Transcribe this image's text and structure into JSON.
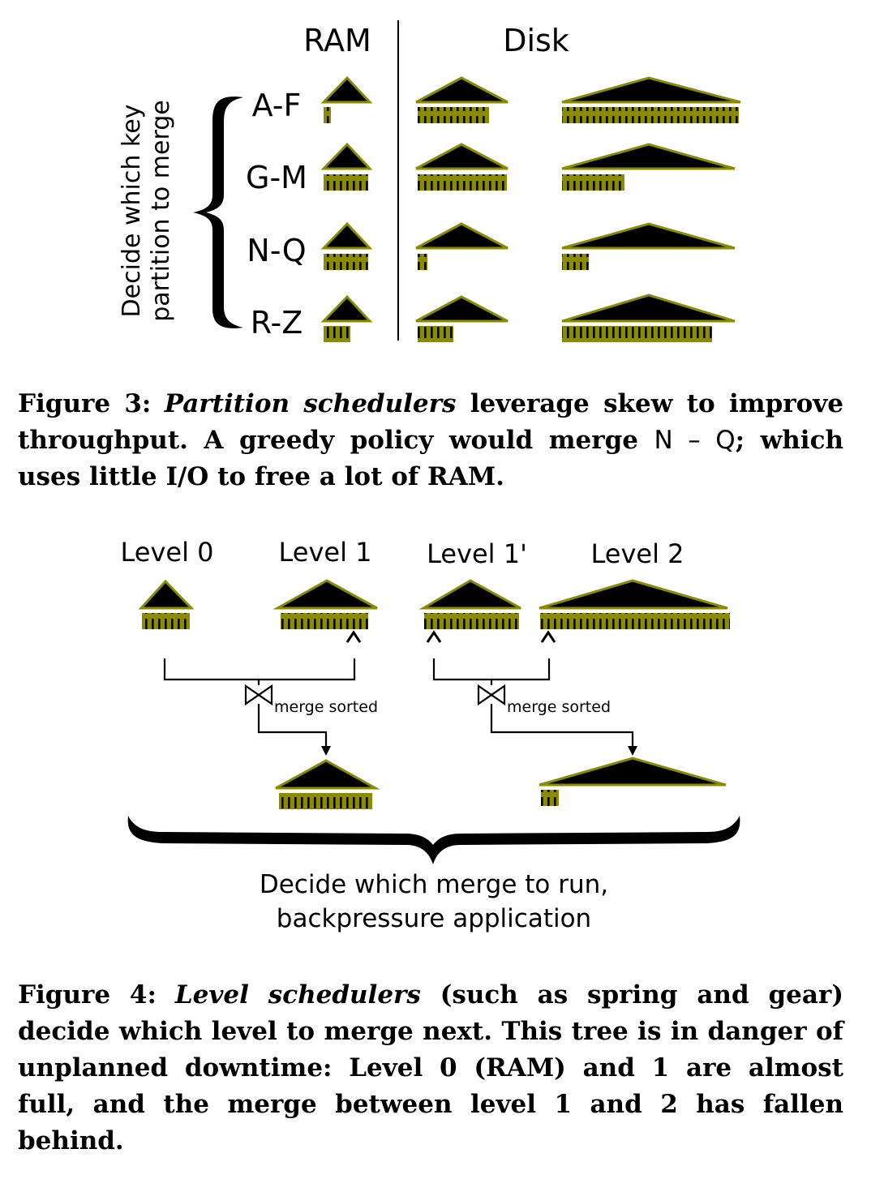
{
  "figure3": {
    "header_ram": "RAM",
    "header_disk": "Disk",
    "side_label_line1": "Decide which key",
    "side_label_line2": "partition to merge",
    "partitions": [
      "A-F",
      "G-M",
      "N-Q",
      "R-Z"
    ],
    "caption": {
      "label": "Figure 3:",
      "emph": "Partition schedulers",
      "text1": " leverage skew to improve throughput.  A greedy policy would merge ",
      "math": "N – Q",
      "text2": "; which uses little I/O to free a lot of RAM."
    }
  },
  "figure4": {
    "levels": [
      "Level 0",
      "Level 1",
      "Level 1'",
      "Level 2"
    ],
    "merge_label_left": "merge sorted",
    "merge_label_right": "merge sorted",
    "bottom_line1": "Decide which merge to run,",
    "bottom_line2": "backpressure application",
    "caption": {
      "label": "Figure 4:",
      "emph": "Level schedulers",
      "text": " (such as spring and gear) decide which level to merge next.  This tree is in danger of unplanned downtime: Level 0 (RAM) and 1 are almost full, and the merge between level 1 and 2 has fallen behind."
    }
  },
  "colors": {
    "olive": "#8b8b00",
    "olive_dark": "#5c5c00",
    "ink": "#000000"
  }
}
